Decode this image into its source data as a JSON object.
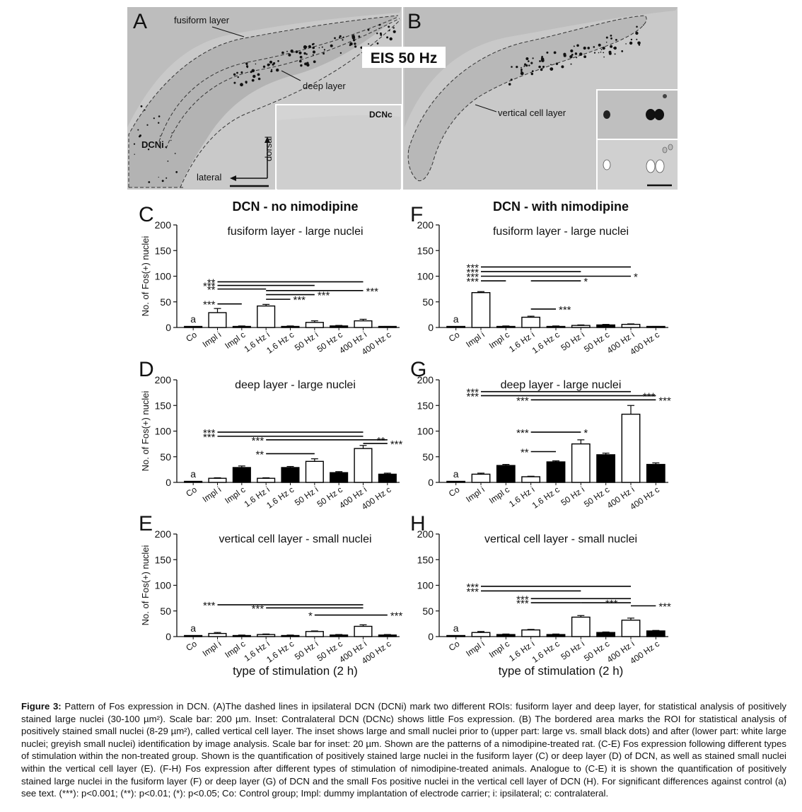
{
  "micrograph": {
    "panel_a": {
      "letter": "A",
      "label_fusiform": "fusiform layer",
      "label_deep": "deep layer",
      "label_dcni": "DCNi",
      "label_dorsal": "dorsal",
      "label_lateral": "lateral",
      "inset_label": "DCNc"
    },
    "panel_b": {
      "letter": "B",
      "label_vertical": "vertical cell layer"
    },
    "eis_label": "EIS 50 Hz"
  },
  "chart_data": [
    {
      "id": "C",
      "type": "bar",
      "letter": "C",
      "heading": "DCN - no nimodipine",
      "title": "fusiform layer - large nuclei",
      "ylabel": "No. of Fos(+) nuclei",
      "ylim": [
        0,
        200
      ],
      "yticks": [
        0,
        50,
        100,
        150,
        200
      ],
      "categories": [
        "Co",
        "Impl i",
        "Impl c",
        "1.6 Hz i",
        "1.6 Hz c",
        "50 Hz i",
        "50 Hz c",
        "400 Hz i",
        "400 Hz c"
      ],
      "values": [
        1,
        29,
        2,
        42,
        2,
        10,
        3,
        13,
        1
      ],
      "errors": [
        0,
        8,
        1,
        3,
        1,
        3,
        1,
        3,
        1
      ],
      "fills": [
        "black",
        "white",
        "black",
        "white",
        "black",
        "white",
        "black",
        "white",
        "black"
      ],
      "annotation_a": "a",
      "sig": [
        {
          "x1": 1,
          "x2": 7,
          "y": 89,
          "label": "**",
          "side": "left"
        },
        {
          "x1": 1,
          "x2": 5,
          "y": 82,
          "label": "***",
          "side": "left"
        },
        {
          "x1": 1,
          "x2": 3,
          "y": 75,
          "label": "**",
          "side": "left"
        },
        {
          "x1": 3,
          "x2": 7,
          "y": 72,
          "label": "***",
          "side": "right"
        },
        {
          "x1": 3,
          "x2": 5,
          "y": 64,
          "label": "***",
          "side": "right"
        },
        {
          "x1": 3,
          "x2": 4,
          "y": 55,
          "label": "***",
          "side": "right"
        },
        {
          "x1": 1,
          "x2": 2,
          "y": 46,
          "label": "***",
          "side": "left"
        }
      ]
    },
    {
      "id": "D",
      "type": "bar",
      "letter": "D",
      "heading": "",
      "title": "deep layer - large nuclei",
      "ylabel": "No. of Fos(+) nuclei",
      "ylim": [
        0,
        200
      ],
      "yticks": [
        0,
        50,
        100,
        150,
        200
      ],
      "categories": [
        "Co",
        "Impl i",
        "Impl c",
        "1.6 Hz i",
        "1.6 Hz c",
        "50 Hz i",
        "50 Hz c",
        "400 Hz i",
        "400 Hz c"
      ],
      "values": [
        1,
        8,
        29,
        8,
        29,
        41,
        19,
        66,
        16
      ],
      "errors": [
        0,
        1,
        3,
        1,
        2,
        5,
        2,
        6,
        2
      ],
      "fills": [
        "black",
        "white",
        "black",
        "white",
        "black",
        "white",
        "black",
        "white",
        "black"
      ],
      "annotation_a": "a",
      "sig": [
        {
          "x1": 1,
          "x2": 7,
          "y": 98,
          "label": "***",
          "side": "left"
        },
        {
          "x1": 1,
          "x2": 7,
          "y": 90,
          "label": "***",
          "side": "left"
        },
        {
          "x1": 3,
          "x2": 7,
          "y": 83,
          "label": "***",
          "side": "left"
        },
        {
          "x1": 7,
          "x2": 8,
          "y": 83,
          "label": "**",
          "side": "mid"
        },
        {
          "x1": 7,
          "x2": 8,
          "y": 76,
          "label": "***",
          "side": "right"
        },
        {
          "x1": 3,
          "x2": 5,
          "y": 56,
          "label": "**",
          "side": "left"
        }
      ]
    },
    {
      "id": "E",
      "type": "bar",
      "letter": "E",
      "heading": "",
      "title": "vertical cell layer - small nuclei",
      "ylabel": "No. of Fos(+) nuclei",
      "ylim": [
        0,
        200
      ],
      "yticks": [
        0,
        50,
        100,
        150,
        200
      ],
      "categories": [
        "Co",
        "Impl i",
        "Impl c",
        "1.6 Hz i",
        "1.6 Hz c",
        "50 Hz i",
        "50 Hz c",
        "400 Hz i",
        "400 Hz c"
      ],
      "values": [
        1,
        6,
        2,
        4,
        2,
        10,
        3,
        20,
        3
      ],
      "errors": [
        0,
        2,
        1,
        1,
        1,
        1,
        1,
        3,
        1
      ],
      "fills": [
        "black",
        "white",
        "black",
        "white",
        "black",
        "white",
        "black",
        "white",
        "black"
      ],
      "annotation_a": "a",
      "xlabel": "type of stimulation (2 h)",
      "sig": [
        {
          "x1": 1,
          "x2": 7,
          "y": 62,
          "label": "***",
          "side": "left"
        },
        {
          "x1": 3,
          "x2": 7,
          "y": 56,
          "label": "***",
          "side": "left"
        },
        {
          "x1": 5,
          "x2": 7,
          "y": 42,
          "label": "*",
          "side": "left"
        },
        {
          "x1": 7,
          "x2": 8,
          "y": 42,
          "label": "***",
          "side": "right"
        }
      ]
    },
    {
      "id": "F",
      "type": "bar",
      "letter": "F",
      "heading": "DCN - with nimodipine",
      "title": "fusiform layer - large nuclei",
      "ylabel": "",
      "ylim": [
        0,
        200
      ],
      "yticks": [
        0,
        50,
        100,
        150,
        200
      ],
      "categories": [
        "Co",
        "Impl i",
        "Impl c",
        "1.6 Hz i",
        "1.6 Hz c",
        "50 Hz i",
        "50 Hz c",
        "400 Hz i",
        "400 Hz c"
      ],
      "values": [
        0,
        68,
        2,
        20,
        2,
        4,
        5,
        6,
        1
      ],
      "errors": [
        0,
        2,
        1,
        2,
        1,
        1,
        1,
        1,
        1
      ],
      "fills": [
        "black",
        "white",
        "black",
        "white",
        "black",
        "white",
        "black",
        "white",
        "black"
      ],
      "annotation_a": "a",
      "sig": [
        {
          "x1": 1,
          "x2": 7,
          "y": 118,
          "label": "***",
          "side": "left"
        },
        {
          "x1": 1,
          "x2": 5,
          "y": 109,
          "label": "***",
          "side": "left"
        },
        {
          "x1": 1,
          "x2": 7,
          "y": 100,
          "label": "***",
          "side": "left"
        },
        {
          "x1": 7,
          "x2": 7,
          "y": 100,
          "label": "*",
          "side": "right"
        },
        {
          "x1": 1,
          "x2": 2,
          "y": 91,
          "label": "***",
          "side": "left"
        },
        {
          "x1": 3,
          "x2": 5,
          "y": 91,
          "label": "*",
          "side": "right"
        },
        {
          "x1": 3,
          "x2": 4,
          "y": 36,
          "label": "***",
          "side": "right"
        }
      ]
    },
    {
      "id": "G",
      "type": "bar",
      "letter": "G",
      "heading": "",
      "title": "deep layer - large nuclei",
      "ylabel": "",
      "ylim": [
        0,
        200
      ],
      "yticks": [
        0,
        50,
        100,
        150,
        200
      ],
      "categories": [
        "Co",
        "Impl i",
        "Impl c",
        "1.6 Hz i",
        "1.6 Hz c",
        "50 Hz i",
        "50 Hz c",
        "400 Hz i",
        "400 Hz c"
      ],
      "values": [
        1,
        16,
        33,
        11,
        40,
        75,
        54,
        133,
        35
      ],
      "errors": [
        0,
        2,
        2,
        1,
        2,
        8,
        3,
        17,
        3
      ],
      "fills": [
        "black",
        "white",
        "black",
        "white",
        "black",
        "white",
        "black",
        "white",
        "black"
      ],
      "annotation_a": "a",
      "sig": [
        {
          "x1": 1,
          "x2": 7,
          "y": 177,
          "label": "***",
          "side": "left"
        },
        {
          "x1": 1,
          "x2": 7,
          "y": 169,
          "label": "***",
          "side": "left"
        },
        {
          "x1": 7,
          "x2": 8,
          "y": 169,
          "label": "***",
          "side": "mid"
        },
        {
          "x1": 3,
          "x2": 7,
          "y": 161,
          "label": "***",
          "side": "left"
        },
        {
          "x1": 7,
          "x2": 8,
          "y": 161,
          "label": "***",
          "side": "right"
        },
        {
          "x1": 3,
          "x2": 5,
          "y": 98,
          "label": "***",
          "side": "left"
        },
        {
          "x1": 5,
          "x2": 5,
          "y": 98,
          "label": "*",
          "side": "right"
        },
        {
          "x1": 3,
          "x2": 4,
          "y": 60,
          "label": "**",
          "side": "left"
        }
      ]
    },
    {
      "id": "H",
      "type": "bar",
      "letter": "H",
      "heading": "",
      "title": "vertical cell layer - small nuclei",
      "ylabel": "",
      "ylim": [
        0,
        200
      ],
      "yticks": [
        0,
        50,
        100,
        150,
        200
      ],
      "categories": [
        "Co",
        "Impl i",
        "Impl c",
        "1.6 Hz i",
        "1.6 Hz c",
        "50 Hz i",
        "50 Hz c",
        "400 Hz i",
        "400 Hz c"
      ],
      "values": [
        1,
        8,
        4,
        13,
        4,
        38,
        8,
        32,
        11
      ],
      "errors": [
        0,
        2,
        1,
        1,
        1,
        3,
        1,
        4,
        1
      ],
      "fills": [
        "black",
        "white",
        "black",
        "white",
        "black",
        "white",
        "black",
        "white",
        "black"
      ],
      "annotation_a": "a",
      "xlabel": "type of stimulation (2 h)",
      "sig": [
        {
          "x1": 1,
          "x2": 7,
          "y": 98,
          "label": "***",
          "side": "left"
        },
        {
          "x1": 1,
          "x2": 5,
          "y": 89,
          "label": "***",
          "side": "left"
        },
        {
          "x1": 3,
          "x2": 7,
          "y": 74,
          "label": "***",
          "side": "left"
        },
        {
          "x1": 3,
          "x2": 5,
          "y": 66,
          "label": "***",
          "side": "left"
        },
        {
          "x1": 5,
          "x2": 7,
          "y": 66,
          "label": "***",
          "side": "mid"
        },
        {
          "x1": 7,
          "x2": 8,
          "y": 60,
          "label": "***",
          "side": "right"
        }
      ]
    }
  ],
  "caption": {
    "label": "Figure 3:",
    "text": " Pattern of Fos expression in DCN. (A)The dashed lines in ipsilateral DCN (DCNi) mark two different ROIs: fusiform layer and deep layer, for statistical analysis of positively stained large nuclei (30-100 µm²). Scale bar: 200 µm. Inset: Contralateral DCN (DCNc) shows little Fos expression. (B) The bordered area marks the ROI for statistical analysis of positively stained small nuclei (8-29 µm²), called vertical cell layer. The inset shows large and small nuclei prior to (upper part: large vs. small black dots) and after (lower part: white large nuclei; greyish small nuclei) identification by image analysis. Scale bar for inset: 20 µm. Shown are the patterns of a nimodipine-treated rat. (C-E) Fos expression following different types of stimulation within the non-treated group. Shown is the quantification of positively stained large nuclei in the fusiform layer (C) or deep layer (D) of DCN, as well as stained small nuclei within the vertical cell layer (E). (F-H) Fos expression after different types of stimulation of nimodipine-treated animals. Analogue to (C-E) it is shown the quantification of positively stained large nuclei in the fusiform layer (F) or deep layer (G) of DCN and the small Fos positive nuclei in the vertical cell layer of DCN (H). For significant differences against control (a) see text. (***): p<0.001; (**): p<0.01; (*): p<0.05; Co: Control group; Impl: dummy implantation of electrode carrier; i: ipsilateral; c: contralateral."
  }
}
